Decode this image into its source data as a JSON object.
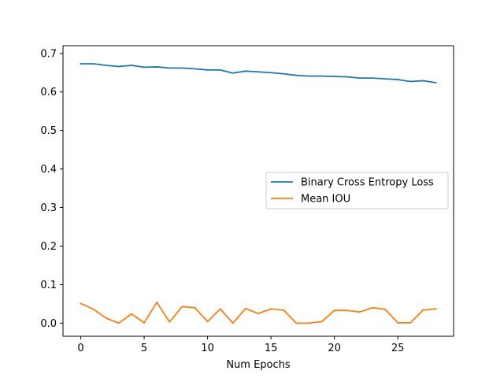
{
  "chart_data": {
    "type": "line",
    "title": "",
    "xlabel": "Num Epochs",
    "ylabel": "",
    "xlim": [
      -1.4,
      29.4
    ],
    "ylim": [
      -0.034,
      0.72
    ],
    "xticks": [
      0,
      5,
      10,
      15,
      20,
      25
    ],
    "yticks": [
      0.0,
      0.1,
      0.2,
      0.3,
      0.4,
      0.5,
      0.6,
      0.7
    ],
    "xtick_labels": [
      "0",
      "5",
      "10",
      "15",
      "20",
      "25"
    ],
    "ytick_labels": [
      "0.0",
      "0.1",
      "0.2",
      "0.3",
      "0.4",
      "0.5",
      "0.6",
      "0.7"
    ],
    "grid": false,
    "legend_position": "center-right",
    "x": [
      0,
      1,
      2,
      3,
      4,
      5,
      6,
      7,
      8,
      9,
      10,
      11,
      12,
      13,
      14,
      15,
      16,
      17,
      18,
      19,
      20,
      21,
      22,
      23,
      24,
      25,
      26,
      27,
      28
    ],
    "series": [
      {
        "name": "Binary Cross Entropy Loss",
        "color": "#1f77b4",
        "values": [
          0.673,
          0.673,
          0.669,
          0.666,
          0.669,
          0.664,
          0.665,
          0.662,
          0.662,
          0.66,
          0.657,
          0.657,
          0.649,
          0.654,
          0.652,
          0.65,
          0.647,
          0.643,
          0.641,
          0.641,
          0.64,
          0.639,
          0.636,
          0.636,
          0.634,
          0.632,
          0.627,
          0.629,
          0.624
        ]
      },
      {
        "name": "Mean IOU",
        "color": "#ff7f0e",
        "values": [
          0.051,
          0.036,
          0.013,
          0.0,
          0.024,
          0.001,
          0.054,
          0.003,
          0.043,
          0.04,
          0.004,
          0.037,
          0.0,
          0.038,
          0.025,
          0.037,
          0.034,
          0.0,
          0.0,
          0.004,
          0.033,
          0.033,
          0.029,
          0.04,
          0.036,
          0.001,
          0.001,
          0.034,
          0.037
        ]
      }
    ]
  }
}
